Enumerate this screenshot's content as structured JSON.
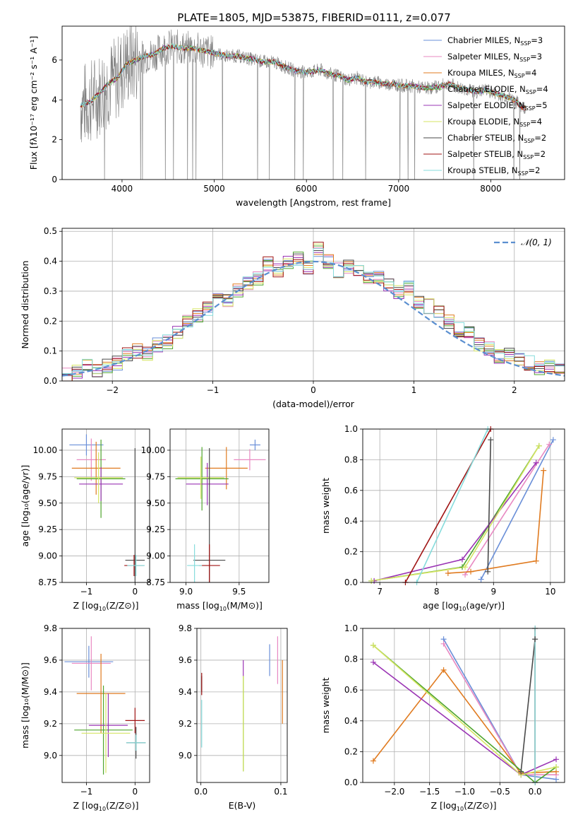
{
  "figure_title": "PLATE=1805, MJD=53875, FIBERID=0111, z=0.077",
  "model_colors": {
    "Chabrier MILES": "#6a8fd8",
    "Salpeter MILES": "#e889c2",
    "Kroupa MILES": "#e07b20",
    "Chabrier ELODIE": "#4fa52e",
    "Salpeter ELODIE": "#9a34b4",
    "Kroupa ELODIE": "#d6e563",
    "Chabrier STELIB": "#4a4a4a",
    "Salpeter STELIB": "#a01515",
    "Kroupa STELIB": "#86dcdc"
  },
  "chart_data": [
    {
      "type": "line",
      "panel": "spectrum",
      "xlabel": "wavelength [Angstrom, rest frame]",
      "ylabel": "Flux [f_λ10^{-17} erg cm^{-2} s^{-1} A^{-1}]",
      "xlim": [
        3350,
        8800
      ],
      "ylim": [
        0,
        7.7
      ],
      "xticks": [
        "4000",
        "5000",
        "6000",
        "7000",
        "8000"
      ],
      "yticks": [
        "0",
        "2",
        "4",
        "6"
      ],
      "grid": false,
      "legend_position": "right",
      "data_color": "#808080",
      "continuum": {
        "x": [
          3550,
          3650,
          3750,
          3850,
          3950,
          4050,
          4150,
          4250,
          4350,
          4450,
          4550,
          4650,
          4750,
          4850,
          4950,
          5050,
          5150,
          5250,
          5350,
          5450,
          5550,
          5650,
          5750,
          5850,
          5950,
          6050,
          6150,
          6250,
          6350,
          6450,
          6550,
          6650,
          6750,
          6850,
          6950,
          7050,
          7150,
          7250,
          7350,
          7450,
          7550,
          7650,
          7750,
          7850,
          7950,
          8050,
          8150,
          8250,
          8350
        ],
        "y": [
          3.7,
          3.9,
          4.3,
          4.8,
          5.1,
          5.8,
          6.0,
          6.2,
          6.3,
          6.6,
          6.7,
          6.6,
          6.6,
          6.5,
          6.4,
          6.3,
          6.2,
          6.2,
          6.1,
          6.0,
          5.9,
          5.9,
          5.7,
          5.5,
          5.4,
          5.4,
          5.5,
          5.3,
          5.2,
          5.0,
          5.1,
          4.9,
          4.9,
          4.8,
          4.8,
          4.7,
          4.7,
          4.6,
          4.6,
          4.7,
          4.8,
          4.6,
          4.5,
          4.4,
          4.5,
          4.3,
          4.2,
          4.0,
          3.6
        ]
      },
      "legend": [
        {
          "label": "Chabrier MILES, N",
          "sub": "SSP",
          "n": "=3"
        },
        {
          "label": "Salpeter MILES, N",
          "sub": "SSP",
          "n": "=3"
        },
        {
          "label": "Kroupa MILES, N",
          "sub": "SSP",
          "n": "=4"
        },
        {
          "label": "Chabrier ELODIE, N",
          "sub": "SSP",
          "n": "=4"
        },
        {
          "label": "Salpeter ELODIE, N",
          "sub": "SSP",
          "n": "=5"
        },
        {
          "label": "Kroupa ELODIE, N",
          "sub": "SSP",
          "n": "=4"
        },
        {
          "label": "Chabrier STELIB, N",
          "sub": "SSP",
          "n": "=2"
        },
        {
          "label": "Salpeter STELIB, N",
          "sub": "SSP",
          "n": "=2"
        },
        {
          "label": "Kroupa STELIB, N",
          "sub": "SSP",
          "n": "=2"
        }
      ]
    },
    {
      "type": "line",
      "panel": "residual-histogram",
      "xlabel": "(data-model)/error",
      "ylabel": "Normed distribution",
      "xlim": [
        -2.5,
        2.5
      ],
      "ylim": [
        0,
        0.51
      ],
      "xticks": [
        "−2",
        "−1",
        "0",
        "1",
        "2"
      ],
      "yticks": [
        "0.0",
        "0.1",
        "0.2",
        "0.3",
        "0.4",
        "0.5"
      ],
      "grid": true,
      "legend_position": "top-right",
      "legend_label": "𝒩(0, 1)",
      "gaussian_color": "#5b8fd0",
      "bin_edges": [
        -2.5,
        -2.4,
        -2.3,
        -2.2,
        -2.1,
        -2.0,
        -1.9,
        -1.8,
        -1.7,
        -1.6,
        -1.5,
        -1.4,
        -1.3,
        -1.2,
        -1.1,
        -1.0,
        -0.9,
        -0.8,
        -0.7,
        -0.6,
        -0.5,
        -0.4,
        -0.3,
        -0.2,
        -0.1,
        0.0,
        0.1,
        0.2,
        0.3,
        0.4,
        0.5,
        0.6,
        0.7,
        0.8,
        0.9,
        1.0,
        1.1,
        1.2,
        1.3,
        1.4,
        1.5,
        1.6,
        1.7,
        1.8,
        1.9,
        2.0,
        2.1,
        2.2,
        2.3,
        2.4,
        2.5
      ],
      "base_hist": [
        0.02,
        0.03,
        0.05,
        0.03,
        0.05,
        0.06,
        0.09,
        0.1,
        0.09,
        0.12,
        0.13,
        0.16,
        0.2,
        0.22,
        0.24,
        0.29,
        0.27,
        0.3,
        0.33,
        0.34,
        0.39,
        0.37,
        0.4,
        0.41,
        0.38,
        0.44,
        0.4,
        0.37,
        0.38,
        0.37,
        0.34,
        0.35,
        0.32,
        0.3,
        0.31,
        0.26,
        0.25,
        0.23,
        0.2,
        0.17,
        0.16,
        0.12,
        0.11,
        0.08,
        0.09,
        0.07,
        0.06,
        0.04,
        0.05,
        0.04
      ]
    },
    {
      "type": "scatter",
      "panel": "age-vs-Z",
      "xlabel": "Z [log10(Z/Z⊙)]",
      "ylabel": "age  [log10(age/yr)]",
      "xlim": [
        -1.5,
        0.3
      ],
      "ylim": [
        8.75,
        10.2
      ],
      "xticks": [
        "−1",
        "0"
      ],
      "yticks": [
        "8.75",
        "9.00",
        "9.25",
        "9.50",
        "9.75",
        "10.00"
      ],
      "grid": true,
      "points": [
        {
          "model": "Chabrier MILES",
          "x": -1.0,
          "y": 10.05,
          "xerr": 0.35,
          "yerr": 0.1
        },
        {
          "model": "Salpeter MILES",
          "x": -0.9,
          "y": 9.91,
          "xerr": 0.3,
          "yerr": 0.2
        },
        {
          "model": "Kroupa MILES",
          "x": -0.8,
          "y": 9.83,
          "xerr": 0.5,
          "yerr": 0.25
        },
        {
          "model": "Chabrier ELODIE",
          "x": -0.7,
          "y": 9.73,
          "xerr": 0.5,
          "yerr": 0.37
        },
        {
          "model": "Salpeter ELODIE",
          "x": -0.7,
          "y": 9.68,
          "xerr": 0.45,
          "yerr": 0.16
        },
        {
          "model": "Kroupa ELODIE",
          "x": -0.75,
          "y": 9.74,
          "xerr": 0.5,
          "yerr": 0.24
        },
        {
          "model": "Chabrier STELIB",
          "x": 0.0,
          "y": 8.96,
          "xerr": 0.2,
          "yerr": 1.06
        },
        {
          "model": "Salpeter STELIB",
          "x": -0.02,
          "y": 8.91,
          "xerr": 0.2,
          "yerr": 0.1
        },
        {
          "model": "Kroupa STELIB",
          "x": 0.02,
          "y": 8.91,
          "xerr": 0.18,
          "yerr": 0.1
        }
      ]
    },
    {
      "type": "scatter",
      "panel": "age-vs-mass",
      "xlabel": "mass [log10(M/M⊙)]",
      "ylabel": "",
      "xlim": [
        8.85,
        9.78
      ],
      "ylim": [
        8.75,
        10.2
      ],
      "xticks": [
        "9.0",
        "9.5"
      ],
      "yticks": [
        "8.75",
        "9.00",
        "9.25",
        "9.50",
        "9.75",
        "10.00"
      ],
      "grid": true,
      "points": [
        {
          "model": "Chabrier MILES",
          "x": 9.65,
          "y": 10.05,
          "xerr": 0.05,
          "yerr": 0.05
        },
        {
          "model": "Salpeter MILES",
          "x": 9.6,
          "y": 9.91,
          "xerr": 0.15,
          "yerr": 0.1
        },
        {
          "model": "Kroupa MILES",
          "x": 9.38,
          "y": 9.83,
          "xerr": 0.2,
          "yerr": 0.2
        },
        {
          "model": "Chabrier ELODIE",
          "x": 9.15,
          "y": 9.73,
          "xerr": 0.25,
          "yerr": 0.3
        },
        {
          "model": "Salpeter ELODIE",
          "x": 9.2,
          "y": 9.68,
          "xerr": 0.2,
          "yerr": 0.2
        },
        {
          "model": "Kroupa ELODIE",
          "x": 9.14,
          "y": 9.74,
          "xerr": 0.22,
          "yerr": 0.2
        },
        {
          "model": "Chabrier STELIB",
          "x": 9.22,
          "y": 8.96,
          "xerr": 0.15,
          "yerr": 1.06
        },
        {
          "model": "Salpeter STELIB",
          "x": 9.22,
          "y": 8.91,
          "xerr": 0.1,
          "yerr": 0.2
        },
        {
          "model": "Kroupa STELIB",
          "x": 9.08,
          "y": 8.91,
          "xerr": 0.07,
          "yerr": 0.2
        }
      ]
    },
    {
      "type": "line",
      "panel": "mass-weight-vs-age",
      "xlabel": "age  [log10(age/yr)]",
      "ylabel": "mass weight",
      "xlim": [
        6.7,
        10.25
      ],
      "ylim": [
        0,
        1
      ],
      "xticks": [
        "7",
        "8",
        "9",
        "10"
      ],
      "yticks": [
        "0.0",
        "0.2",
        "0.4",
        "0.6",
        "0.8",
        "1.0"
      ],
      "grid": true,
      "series": [
        {
          "model": "Chabrier MILES",
          "x": [
            8.78,
            10.05
          ],
          "y": [
            0.02,
            0.93
          ]
        },
        {
          "model": "Salpeter MILES",
          "x": [
            8.5,
            9.98
          ],
          "y": [
            0.05,
            0.9
          ]
        },
        {
          "model": "Kroupa MILES",
          "x": [
            8.2,
            8.6,
            9.75,
            9.88
          ],
          "y": [
            0.06,
            0.07,
            0.14,
            0.73
          ]
        },
        {
          "model": "Chabrier ELODIE",
          "x": [
            6.85,
            8.45,
            9.8
          ],
          "y": [
            0.01,
            0.1,
            0.89
          ]
        },
        {
          "model": "Salpeter ELODIE",
          "x": [
            6.9,
            8.45,
            9.75
          ],
          "y": [
            0.01,
            0.15,
            0.78
          ]
        },
        {
          "model": "Kroupa ELODIE",
          "x": [
            6.85,
            8.5,
            9.8
          ],
          "y": [
            0.01,
            0.1,
            0.89
          ]
        },
        {
          "model": "Chabrier STELIB",
          "x": [
            8.9,
            8.95
          ],
          "y": [
            0.07,
            0.93
          ]
        },
        {
          "model": "Salpeter STELIB",
          "x": [
            7.45,
            8.95
          ],
          "y": [
            0.0,
            1.0
          ]
        },
        {
          "model": "Kroupa STELIB",
          "x": [
            7.65,
            8.9
          ],
          "y": [
            0.0,
            1.0
          ]
        }
      ]
    },
    {
      "type": "scatter",
      "panel": "mass-vs-Z",
      "xlabel": "Z [log10(Z/Z⊙)]",
      "ylabel": "mass [log10(M/M⊙)]",
      "xlim": [
        -1.5,
        0.3
      ],
      "ylim": [
        8.83,
        9.8
      ],
      "xticks": [
        "−1",
        "0"
      ],
      "yticks": [
        "9.0",
        "9.2",
        "9.4",
        "9.6",
        "9.8"
      ],
      "grid": true,
      "points": [
        {
          "model": "Chabrier MILES",
          "x": -0.95,
          "y": 9.59,
          "xerr": 0.5,
          "yerr": 0.1
        },
        {
          "model": "Salpeter MILES",
          "x": -0.9,
          "y": 9.58,
          "xerr": 0.4,
          "yerr": 0.17
        },
        {
          "model": "Kroupa MILES",
          "x": -0.7,
          "y": 9.39,
          "xerr": 0.5,
          "yerr": 0.25
        },
        {
          "model": "Chabrier ELODIE",
          "x": -0.65,
          "y": 9.16,
          "xerr": 0.6,
          "yerr": 0.28
        },
        {
          "model": "Salpeter ELODIE",
          "x": -0.55,
          "y": 9.19,
          "xerr": 0.4,
          "yerr": 0.2
        },
        {
          "model": "Kroupa ELODIE",
          "x": -0.6,
          "y": 9.14,
          "xerr": 0.5,
          "yerr": 0.25
        },
        {
          "model": "Chabrier STELIB",
          "x": 0.02,
          "y": 9.08,
          "xerr": 0.2,
          "yerr": 0.1
        },
        {
          "model": "Salpeter STELIB",
          "x": 0.0,
          "y": 9.22,
          "xerr": 0.2,
          "yerr": 0.08
        },
        {
          "model": "Kroupa STELIB",
          "x": 0.02,
          "y": 9.08,
          "xerr": 0.2,
          "yerr": 0.05
        }
      ]
    },
    {
      "type": "scatter",
      "panel": "mass-vs-EBV",
      "xlabel": "E(B-V)",
      "ylabel": "",
      "xlim": [
        -0.005,
        0.108
      ],
      "ylim": [
        8.83,
        9.8
      ],
      "xticks": [
        "0.0",
        "0.1"
      ],
      "yticks": [
        "9.0",
        "9.2",
        "9.4",
        "9.6",
        "9.8"
      ],
      "grid": true,
      "points": [
        {
          "model": "Chabrier MILES",
          "x": 0.086,
          "y": 9.6,
          "xerr": 0.0,
          "yerr": 0.1
        },
        {
          "model": "Salpeter MILES",
          "x": 0.096,
          "y": 9.6,
          "xerr": 0.0,
          "yerr": 0.15
        },
        {
          "model": "Kroupa MILES",
          "x": 0.102,
          "y": 9.4,
          "xerr": 0.0,
          "yerr": 0.2
        },
        {
          "model": "Chabrier ELODIE",
          "x": 0.053,
          "y": 9.2,
          "xerr": 0.0,
          "yerr": 0.3
        },
        {
          "model": "Salpeter ELODIE",
          "x": 0.053,
          "y": 9.55,
          "xerr": 0.0,
          "yerr": 0.05
        },
        {
          "model": "Kroupa ELODIE",
          "x": 0.053,
          "y": 9.2,
          "xerr": 0.0,
          "yerr": 0.3
        },
        {
          "model": "Chabrier STELIB",
          "x": 0.001,
          "y": 9.45,
          "xerr": 0.0,
          "yerr": 0.05
        },
        {
          "model": "Salpeter STELIB",
          "x": 0.001,
          "y": 9.45,
          "xerr": 0.0,
          "yerr": 0.07
        },
        {
          "model": "Kroupa STELIB",
          "x": 0.001,
          "y": 9.2,
          "xerr": 0.0,
          "yerr": 0.15
        }
      ]
    },
    {
      "type": "line",
      "panel": "mass-weight-vs-Z",
      "xlabel": "Z [log10(Z/Z⊙)]",
      "ylabel": "mass weight",
      "xlim": [
        -2.45,
        0.42
      ],
      "ylim": [
        0,
        1
      ],
      "xticks": [
        "−2.0",
        "−1.5",
        "−1.0",
        "−0.5",
        "0.0"
      ],
      "yticks": [
        "0.0",
        "0.2",
        "0.4",
        "0.6",
        "0.8",
        "1.0"
      ],
      "grid": true,
      "series": [
        {
          "model": "Chabrier MILES",
          "x": [
            -1.3,
            -0.2,
            0.3
          ],
          "y": [
            0.93,
            0.05,
            0.02
          ]
        },
        {
          "model": "Salpeter MILES",
          "x": [
            -1.3,
            -0.2,
            0.3
          ],
          "y": [
            0.9,
            0.05,
            0.05
          ]
        },
        {
          "model": "Kroupa MILES",
          "x": [
            -2.3,
            -1.3,
            -0.2,
            0.3
          ],
          "y": [
            0.14,
            0.73,
            0.06,
            0.07
          ]
        },
        {
          "model": "Chabrier ELODIE",
          "x": [
            -2.3,
            0.0,
            0.3
          ],
          "y": [
            0.89,
            0.0,
            0.1
          ]
        },
        {
          "model": "Salpeter ELODIE",
          "x": [
            -2.3,
            -0.2,
            0.3
          ],
          "y": [
            0.78,
            0.05,
            0.15
          ]
        },
        {
          "model": "Kroupa ELODIE",
          "x": [
            -2.3,
            -0.2,
            0.3
          ],
          "y": [
            0.89,
            0.05,
            0.1
          ]
        },
        {
          "model": "Chabrier STELIB",
          "x": [
            -0.2,
            0.0
          ],
          "y": [
            0.07,
            0.93
          ]
        },
        {
          "model": "Salpeter STELIB",
          "x": [
            0.0,
            0.0
          ],
          "y": [
            0.0,
            1.0
          ]
        },
        {
          "model": "Kroupa STELIB",
          "x": [
            0.0,
            0.0
          ],
          "y": [
            0.0,
            1.0
          ]
        }
      ]
    }
  ]
}
